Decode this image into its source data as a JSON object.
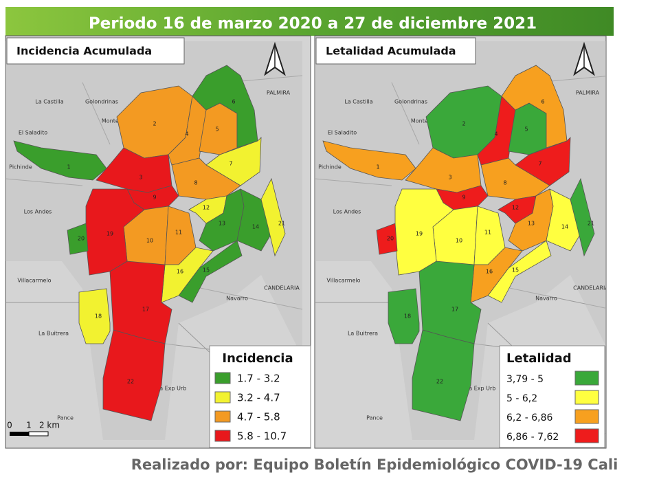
{
  "header": {
    "title": "Periodo 16 de marzo 2020 a 27 de diciembre 2021"
  },
  "places": [
    "La Castilla",
    "Golondrinas",
    "Montebello",
    "El Saladito",
    "Pichinde",
    "Los Andes",
    "Villacarmelo",
    "La Buitrera",
    "Pance",
    "Area Exp Urb",
    "Navarro",
    "CANDELARIA",
    "PALMIRA"
  ],
  "maps": [
    {
      "title": "Incidencia Acumulada",
      "legend": {
        "title": "Incidencia",
        "items": [
          {
            "label": "1.7 - 3.2",
            "color": "#3a9e2c"
          },
          {
            "label": "3.2 - 4.7",
            "color": "#f2f230"
          },
          {
            "label": "4.7 - 5.8",
            "color": "#f39a22"
          },
          {
            "label": "5.8 - 10.7",
            "color": "#e8181c"
          }
        ]
      },
      "communes": [
        {
          "label": "1",
          "level": 0
        },
        {
          "label": "2",
          "level": 2
        },
        {
          "label": "3",
          "level": 3
        },
        {
          "label": "4",
          "level": 2
        },
        {
          "label": "5",
          "level": 2
        },
        {
          "label": "6",
          "level": 0
        },
        {
          "label": "7",
          "level": 1
        },
        {
          "label": "8",
          "level": 2
        },
        {
          "label": "9",
          "level": 3
        },
        {
          "label": "10",
          "level": 2
        },
        {
          "label": "11",
          "level": 2
        },
        {
          "label": "12",
          "level": 1
        },
        {
          "label": "13",
          "level": 0
        },
        {
          "label": "14",
          "level": 0
        },
        {
          "label": "15",
          "level": 0
        },
        {
          "label": "16",
          "level": 1
        },
        {
          "label": "17",
          "level": 3
        },
        {
          "label": "18",
          "level": 1
        },
        {
          "label": "19",
          "level": 3
        },
        {
          "label": "20",
          "level": 0
        },
        {
          "label": "21",
          "level": 1
        },
        {
          "label": "22",
          "level": 3
        }
      ]
    },
    {
      "title": "Letalidad Acumulada",
      "legend": {
        "title": "Letalidad",
        "items": [
          {
            "label": "3,79 - 5",
            "color": "#3aa83a"
          },
          {
            "label": "5 - 6,2",
            "color": "#ffff40"
          },
          {
            "label": "6,2 - 6,86",
            "color": "#f7a01f"
          },
          {
            "label": "6,86 - 7,62",
            "color": "#ee1c1c"
          }
        ]
      },
      "communes": [
        {
          "label": "1",
          "level": 2
        },
        {
          "label": "2",
          "level": 0
        },
        {
          "label": "3",
          "level": 2
        },
        {
          "label": "4",
          "level": 3
        },
        {
          "label": "5",
          "level": 0
        },
        {
          "label": "6",
          "level": 2
        },
        {
          "label": "7",
          "level": 3
        },
        {
          "label": "8",
          "level": 2
        },
        {
          "label": "9",
          "level": 3
        },
        {
          "label": "10",
          "level": 1
        },
        {
          "label": "11",
          "level": 1
        },
        {
          "label": "12",
          "level": 3
        },
        {
          "label": "13",
          "level": 2
        },
        {
          "label": "14",
          "level": 1
        },
        {
          "label": "15",
          "level": 1
        },
        {
          "label": "16",
          "level": 2
        },
        {
          "label": "17",
          "level": 0
        },
        {
          "label": "18",
          "level": 0
        },
        {
          "label": "19",
          "level": 1
        },
        {
          "label": "20",
          "level": 3
        },
        {
          "label": "21",
          "level": 0
        },
        {
          "label": "22",
          "level": 0
        }
      ]
    }
  ],
  "scale": {
    "labels": [
      "0",
      "1",
      "2 km"
    ]
  },
  "footer": "Realizado por: Equipo Boletín Epidemiológico COVID-19 Cali"
}
